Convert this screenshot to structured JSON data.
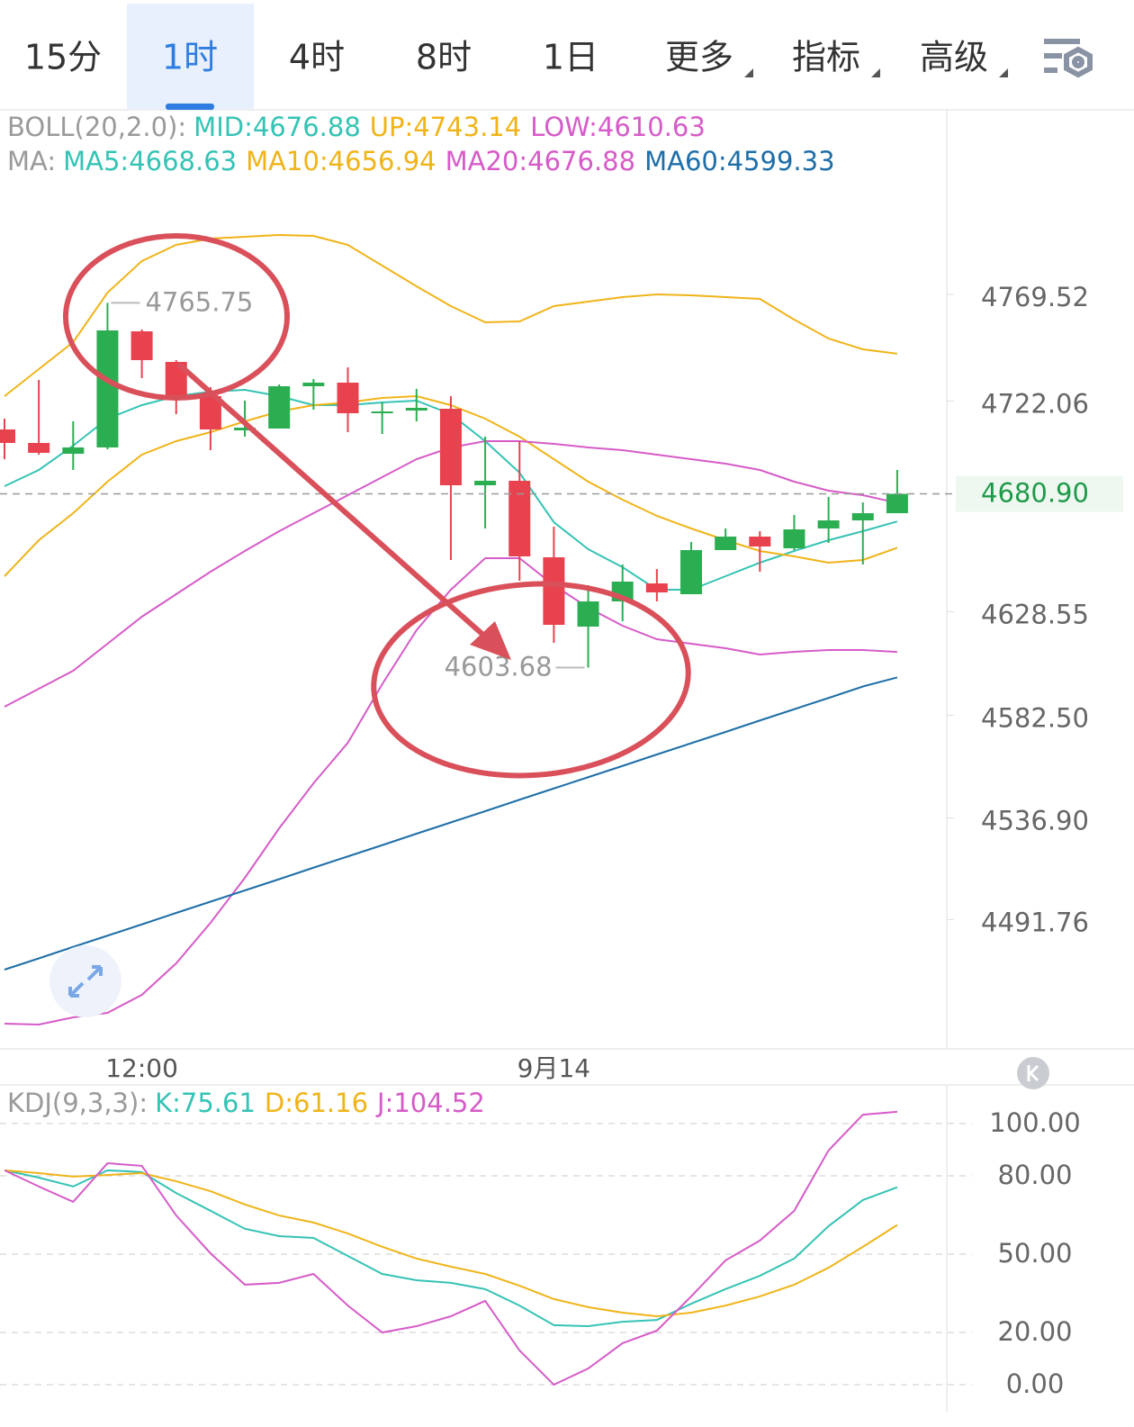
{
  "tabs": [
    "15分",
    "1时",
    "4时",
    "8时",
    "1日",
    "更多",
    "指标",
    "高级"
  ],
  "active_tab": 1,
  "chart_data": [
    {
      "type": "candlestick",
      "categories": [
        null,
        null,
        null,
        null,
        "12:00",
        null,
        null,
        null,
        null,
        null,
        null,
        null,
        null,
        null,
        null,
        null,
        "9月14",
        null,
        null,
        null,
        null,
        null,
        null,
        null,
        null,
        null,
        null
      ],
      "open": [
        4709.5,
        4703.5,
        4698.7,
        4701.5,
        4753.1,
        4739.5,
        4724.3,
        4709.1,
        4709.9,
        4728.7,
        4730.3,
        4716.7,
        4717.9,
        4718.7,
        4684.7,
        4686.7,
        4652.7,
        4621.9,
        4633.1,
        4641.1,
        4636.3,
        4655.9,
        4661.9,
        4656.7,
        4665.5,
        4669.1,
        4672.3
      ],
      "high": [
        4714.3,
        4731.5,
        4713.1,
        4765.75,
        4753.9,
        4740.3,
        4728.3,
        4722.3,
        4729.5,
        4731.9,
        4737.1,
        4721.5,
        4727.5,
        4724.3,
        4706.3,
        4704.3,
        4666.3,
        4640.3,
        4649.5,
        4647.5,
        4659.5,
        4665.5,
        4664.3,
        4671.5,
        4679.5,
        4677.1,
        4691.5
      ],
      "low": [
        4696.3,
        4698.3,
        4691.5,
        4700.7,
        4732.3,
        4716.3,
        4700.3,
        4706.3,
        4709.9,
        4718.3,
        4708.3,
        4707.5,
        4713.1,
        4651.5,
        4665.5,
        4642.3,
        4614.7,
        4603.68,
        4624.3,
        4633.1,
        4636.3,
        4655.9,
        4646.3,
        4655.9,
        4659.1,
        4649.5,
        4672.3
      ],
      "close": [
        4703.5,
        4699.1,
        4701.5,
        4753.5,
        4740.3,
        4724.3,
        4709.5,
        4710.3,
        4728.7,
        4730.3,
        4716.7,
        4717.5,
        4719.1,
        4684.7,
        4686.7,
        4653.1,
        4622.7,
        4633.1,
        4641.9,
        4637.1,
        4655.9,
        4661.9,
        4657.5,
        4665.1,
        4669.1,
        4672.3,
        4680.9
      ],
      "up_color": "#2bae52",
      "down_color": "#e8424f",
      "lines": [
        {
          "color": "#f0b419",
          "values": [
            4724.3,
            4736.3,
            4748.3,
            4770.3,
            4784.3,
            4791.5,
            4794.3,
            4795.1,
            4795.9,
            4795.5,
            4791.5,
            4782.3,
            4773.1,
            4764.3,
            4757.1,
            4757.5,
            4764.3,
            4766.3,
            4768.3,
            4769.5,
            4769.1,
            4768.3,
            4767.5,
            4758.3,
            4749.9,
            4745.1,
            4743.14
          ]
        },
        {
          "color": "#d65bc8",
          "values": [
            4445.5,
            4445.1,
            4448.3,
            4450.3,
            4458.3,
            4472.3,
            4490.3,
            4510.3,
            4532.3,
            4552.3,
            4570.3,
            4596.3,
            4620.3,
            4638.3,
            4652.3,
            4652.3,
            4640.3,
            4630.3,
            4622.3,
            4616.3,
            4614.3,
            4612.3,
            4609.5,
            4610.7,
            4611.5,
            4611.5,
            4610.63
          ]
        },
        {
          "color": "#35c3b5",
          "values": [
            4684.3,
            4691.5,
            4702.3,
            4714.3,
            4720.3,
            4724.3,
            4726.3,
            4727.1,
            4724.3,
            4720.3,
            4720.3,
            4721.5,
            4722.3,
            4716.3,
            4704.3,
            4690.3,
            4668.3,
            4656.3,
            4648.3,
            4638.3,
            4638.3,
            4644.3,
            4650.3,
            4655.5,
            4660.3,
            4664.3,
            4668.63
          ]
        },
        {
          "color": "#f0b419",
          "values": [
            4644.3,
            4660.3,
            4672.3,
            4686.3,
            4698.3,
            4704.3,
            4708.3,
            4713.1,
            4717.5,
            4720.3,
            4721.5,
            4723.5,
            4724.3,
            4720.3,
            4714.3,
            4706.3,
            4696.3,
            4686.3,
            4678.3,
            4671.1,
            4665.5,
            4660.3,
            4655.5,
            4653.1,
            4650.3,
            4651.5,
            4656.94
          ]
        },
        {
          "color": "#d65bc8",
          "values": [
            4586.3,
            4594.3,
            4602.3,
            4614.3,
            4626.3,
            4636.3,
            4646.3,
            4655.5,
            4664.3,
            4672.3,
            4680.3,
            4688.3,
            4696.3,
            4701.5,
            4704.3,
            4704.3,
            4703.1,
            4701.5,
            4700.3,
            4698.3,
            4696.3,
            4694.3,
            4691.5,
            4686.3,
            4682.3,
            4680.3,
            4676.88
          ]
        },
        {
          "color": "#1d6ea8",
          "values": [
            4469.5,
            4474.5,
            4479.6,
            4484.6,
            4489.6,
            4494.7,
            4499.7,
            4504.7,
            4509.7,
            4514.8,
            4519.8,
            4524.8,
            4529.9,
            4534.9,
            4539.9,
            4545.0,
            4550.0,
            4555.0,
            4560.0,
            4565.1,
            4570.1,
            4575.1,
            4580.2,
            4585.2,
            4590.2,
            4595.3,
            4599.33
          ]
        }
      ],
      "legend": [
        {
          "prefix": "BOLL(20,2.0):",
          "items": [
            {
              "text": "MID:4676.88",
              "color": "#35c3b5"
            },
            {
              "text": "UP:4743.14",
              "color": "#f0b419"
            },
            {
              "text": "LOW:4610.63",
              "color": "#d65bc8"
            }
          ]
        },
        {
          "prefix": "MA:",
          "items": [
            {
              "text": "MA5:4668.63",
              "color": "#35c3b5"
            },
            {
              "text": "MA10:4656.94",
              "color": "#f0b419"
            },
            {
              "text": "MA20:4676.88",
              "color": "#d65bc8"
            },
            {
              "text": "MA60:4599.33",
              "color": "#1d6ea8"
            }
          ]
        }
      ],
      "ylim": [
        4434.3,
        4850.3
      ],
      "yticks": [
        4769.52,
        4722.06,
        4628.55,
        {
          "value": 4582.5,
          "label": "4582.50"
        },
        {
          "value": 4536.9,
          "label": "4536.90"
        },
        4491.76
      ],
      "last_price": {
        "value": 4680.9,
        "label": "4680.90"
      },
      "grid": false
    },
    {
      "type": "line",
      "legend": [
        {
          "prefix": "KDJ(9,3,3):",
          "items": [
            {
              "text": "K:75.61",
              "color": "#35c3b5"
            },
            {
              "text": "D:61.16",
              "color": "#f0b419"
            },
            {
              "text": "J:104.52",
              "color": "#d65bc8"
            }
          ]
        }
      ],
      "series": [
        {
          "color": "#35c3b5",
          "values": [
            82.1,
            79.3,
            75.9,
            82.1,
            81.4,
            73.4,
            66.6,
            59.7,
            56.9,
            56.2,
            49.3,
            42.4,
            40.0,
            39.0,
            36.6,
            30.3,
            22.8,
            22.4,
            24.1,
            24.8,
            31.0,
            36.6,
            41.7,
            48.3,
            60.7,
            70.7,
            75.61
          ]
        },
        {
          "color": "#f0b419",
          "values": [
            82.1,
            81.0,
            79.7,
            80.3,
            81.0,
            77.9,
            74.1,
            69.0,
            64.8,
            62.1,
            57.9,
            52.8,
            48.3,
            45.2,
            42.4,
            37.9,
            32.8,
            29.7,
            27.6,
            26.2,
            27.6,
            30.3,
            33.8,
            38.3,
            44.8,
            52.8,
            61.16
          ]
        },
        {
          "color": "#d65bc8",
          "values": [
            82.1,
            75.9,
            70.0,
            84.8,
            83.8,
            64.8,
            50.3,
            38.3,
            39.0,
            42.4,
            30.3,
            20.0,
            22.4,
            26.2,
            32.1,
            13.1,
            0.0,
            6.2,
            15.9,
            20.7,
            33.8,
            47.6,
            55.2,
            66.6,
            89.7,
            103.4,
            104.52
          ]
        }
      ],
      "ylim": [
        -9.3,
        114.8
      ],
      "yticks": [
        {
          "value": 100,
          "label": "100.00"
        },
        {
          "value": 80,
          "label": "80.00"
        },
        {
          "value": 50,
          "label": "50.00"
        },
        {
          "value": 20,
          "label": "20.00"
        },
        {
          "value": 0,
          "label": "0.00"
        }
      ],
      "grid": true
    }
  ]
}
